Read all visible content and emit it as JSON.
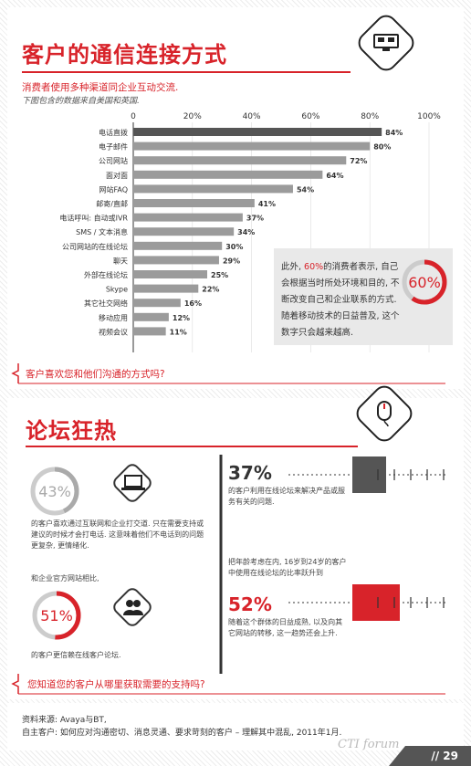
{
  "section1": {
    "title": "客户的通信连接方式",
    "intro": "消费者使用多种渠道同企业互动交流.",
    "intro_note": "下图包含的数据来自美国和英国.",
    "question": "客户喜欢您和他们沟通的方式吗?"
  },
  "chart_data": {
    "type": "bar",
    "orientation": "horizontal",
    "axis_ticks": [
      "0",
      "20%",
      "40%",
      "60%",
      "80%",
      "100%"
    ],
    "xlim": [
      0,
      100
    ],
    "categories": [
      "电话直拨",
      "电子邮件",
      "公司网站",
      "面对面",
      "网站FAQ",
      "邮寄/直邮",
      "电话呼叫: 自动或IVR",
      "SMS / 文本消息",
      "公司网站的在线论坛",
      "聊天",
      "外部在线论坛",
      "Skype",
      "其它社交网络",
      "移动应用",
      "视频会议"
    ],
    "values": [
      84,
      80,
      72,
      64,
      54,
      41,
      37,
      34,
      30,
      29,
      25,
      22,
      16,
      12,
      11
    ],
    "value_labels": [
      "84%",
      "80%",
      "72%",
      "64%",
      "54%",
      "41%",
      "37%",
      "34%",
      "30%",
      "29%",
      "25%",
      "22%",
      "16%",
      "12%",
      "11%"
    ],
    "highlight_color": "#555555",
    "bar_color": "#9b9b9b"
  },
  "callout": {
    "pct": "60%",
    "pct_value": 60,
    "text_before": "此外, ",
    "text_red": "60%",
    "text_after": "的消费者表示, 自己会根据当时所处环境和目的, 不断改变自己和企业联系的方式. 随着移动技术的日益普及, 这个数字只会越来越高."
  },
  "section2": {
    "title": "论坛狂热",
    "left": {
      "pct1": "43%",
      "pct1_value": 43,
      "text1": "的客户喜欢通过互联网和企业打交道. 只在需要支持或建议的时候才会打电话. 这意味着他们不电话到的问题更复杂, 更情绪化.",
      "lead2": "和企业官方网站相比,",
      "pct2": "51%",
      "pct2_value": 51,
      "text2": "的客户更信赖在线客户论坛."
    },
    "right": {
      "stat1": "37%",
      "stat1_value": 37,
      "text1": "的客户利用在线论坛来解决产品或服务有关的问题.",
      "mid": "把年龄考虑在内, 16岁到24岁的客户中使用在线论坛的比率跃升到",
      "stat2": "52%",
      "stat2_value": 52,
      "text2": "随着这个群体的日益成熟, 以及向其它网站的转移, 这一趋势还会上升."
    },
    "question": "您知道您的客户从哪里获取需要的支持吗?"
  },
  "footer": {
    "source_line1": "资料来源: Avaya与BT,",
    "source_line2": "自主客户: 如何应对沟通密切、消息灵通、要求苛刻的客户 – 理解其中混乱, 2011年1月.",
    "page": "// 29",
    "watermark": "CTI forum"
  },
  "colors": {
    "accent": "#d8232a",
    "dark": "#333333",
    "grey": "#9b9b9b"
  }
}
